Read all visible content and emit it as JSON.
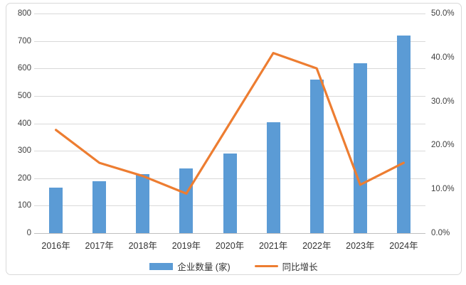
{
  "chart_data": {
    "type": "combo-bar-line",
    "categories": [
      "2016年",
      "2017年",
      "2018年",
      "2019年",
      "2020年",
      "2021年",
      "2022年",
      "2023年",
      "2024年"
    ],
    "series": [
      {
        "name": "企业数量 (家)",
        "type": "bar",
        "axis": "left",
        "color": "#5b9bd5",
        "values": [
          165,
          190,
          215,
          235,
          290,
          405,
          560,
          620,
          720
        ]
      },
      {
        "name": "同比增长",
        "type": "line",
        "axis": "right",
        "color": "#ed7d31",
        "values": [
          23.5,
          16.0,
          13.0,
          9.0,
          25.0,
          41.0,
          37.5,
          11.0,
          16.0
        ]
      }
    ],
    "left_axis": {
      "min": 0,
      "max": 800,
      "tick_step": 100,
      "ticks": [
        "800",
        "700",
        "600",
        "500",
        "400",
        "300",
        "200",
        "100",
        "0"
      ]
    },
    "right_axis": {
      "min": 0,
      "max": 50,
      "tick_step": 10,
      "ticks": [
        "50.0%",
        "40.0%",
        "30.0%",
        "20.0%",
        "10.0%",
        "0.0%"
      ]
    },
    "grid": true,
    "legend_position": "bottom",
    "title": ""
  },
  "colors": {
    "bar": "#5b9bd5",
    "line": "#ed7d31",
    "gridline": "#d9d9d9",
    "axis_line": "#bfbfbf",
    "text": "#333333",
    "frame_border": "#d9d9d9",
    "background": "#ffffff"
  }
}
